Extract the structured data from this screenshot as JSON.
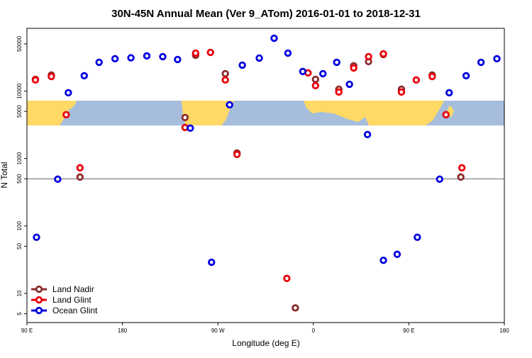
{
  "chart_data": {
    "type": "scatter",
    "title": "30N-45N Annual Mean (Ver 9_ATom)   2016-01-01 to 2018-12-31",
    "xlabel": "Longitude (deg E)",
    "ylabel": "N Total",
    "xlim": [
      90,
      540
    ],
    "ylim": [
      3.7,
      85000
    ],
    "ylog": true,
    "grid": false,
    "legend": "lower left",
    "reference_line": 500,
    "xticks": [
      {
        "value": 90,
        "label": "90 E"
      },
      {
        "value": 180,
        "label": "180"
      },
      {
        "value": 270,
        "label": "90 W"
      },
      {
        "value": 360,
        "label": "0"
      },
      {
        "value": 450,
        "label": "90 E"
      },
      {
        "value": 540,
        "label": "180"
      }
    ],
    "yticks": [
      5,
      10,
      50,
      100,
      500,
      1000,
      5000,
      10000,
      50000
    ],
    "series": [
      {
        "name": "Land Nadir",
        "color": "#8b2a2a",
        "x": [
          98,
          113,
          140,
          239,
          249,
          277,
          288,
          343,
          362,
          384,
          398,
          412,
          426,
          443,
          472,
          485,
          499
        ],
        "values": [
          14900,
          17260,
          531,
          4050,
          33960,
          18100,
          1208,
          6.1,
          14900,
          10640,
          23660,
          27340,
          34800,
          10640,
          17260,
          4460,
          531
        ]
      },
      {
        "name": "Land Glint",
        "color": "#e8000b",
        "x": [
          98,
          113,
          127,
          140,
          239,
          249,
          263,
          277,
          288,
          335,
          355,
          362,
          384,
          398,
          412,
          426,
          443,
          457,
          472,
          485,
          500
        ],
        "values": [
          14580,
          16440,
          4460,
          728,
          2880,
          36540,
          37400,
          14580,
          1150,
          16.7,
          18560,
          12020,
          9660,
          21980,
          32360,
          35650,
          9660,
          14580,
          16440,
          4460,
          728
        ]
      },
      {
        "name": "Ocean Glint",
        "color": "#0000e0",
        "x": [
          99,
          119,
          129,
          144,
          158,
          173,
          188,
          203,
          218,
          232,
          244,
          264,
          281,
          293,
          309,
          323,
          336,
          350,
          369,
          382,
          394,
          411,
          426,
          439,
          458,
          479,
          488,
          504,
          518,
          533
        ],
        "values": [
          68,
          494,
          9440,
          16860,
          26670,
          30130,
          31100,
          33190,
          32360,
          29380,
          2820,
          29,
          6250,
          24210,
          30830,
          60700,
          36540,
          19500,
          18100,
          26670,
          12600,
          2265,
          31,
          38,
          68,
          494,
          9440,
          16860,
          26670,
          30130
        ]
      }
    ]
  }
}
